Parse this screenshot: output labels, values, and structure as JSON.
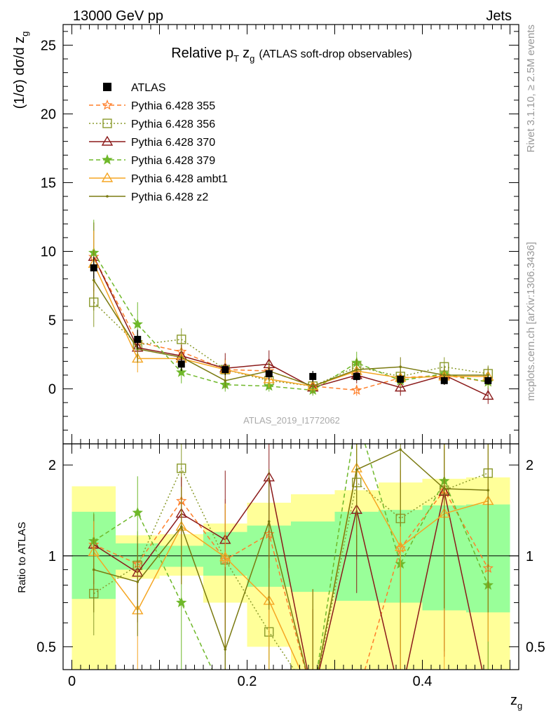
{
  "header": {
    "left": "13000 GeV pp",
    "right": "Jets"
  },
  "side_text": {
    "top": "Rivet 3.1.10, ≥ 2.5M events",
    "bottom": "mcplots.cern.ch [arXiv:1306.3436]"
  },
  "watermark": "ATLAS_2019_I1772062",
  "chart_data": [
    {
      "type": "line",
      "title": "Relative pT zg (ATLAS soft-drop observables)",
      "title_parts": {
        "a": "Relative p",
        "b": "T",
        "c": "z",
        "d": "g",
        "e": "(ATLAS soft-drop observables)"
      },
      "ylabel": "(1/σ) dσ/d z_g",
      "ylabel_parts": {
        "a": "(1/σ) dσ/d z",
        "b": "g"
      },
      "xlabel": "z_g",
      "xlim": [
        -0.01,
        0.51
      ],
      "ylim": [
        -4.0,
        26.5
      ],
      "yticks": [
        0,
        5,
        10,
        15,
        20,
        25
      ],
      "x": [
        0.025,
        0.075,
        0.125,
        0.175,
        0.225,
        0.275,
        0.325,
        0.375,
        0.425,
        0.475
      ],
      "reference": {
        "name": "ATLAS",
        "color": "#000000",
        "values": [
          8.8,
          3.6,
          1.8,
          1.4,
          1.1,
          0.9,
          0.9,
          0.7,
          0.6,
          0.6
        ],
        "errors": [
          0.8,
          0.7,
          0.5,
          0.4,
          0.4,
          0.4,
          0.3,
          0.3,
          0.3,
          0.3
        ]
      },
      "legend_position": "top-left",
      "series": [
        {
          "name": "Pythia 6.428 355",
          "color": "#ff7f2a",
          "dash": "6,4",
          "marker": "star-open",
          "values": [
            9.6,
            3.4,
            2.7,
            1.4,
            1.3,
            0.2,
            -0.1,
            0.8,
            1.0,
            0.5
          ],
          "errors": [
            2.5,
            0.8,
            0.7,
            0.8,
            0.8,
            0.4,
            0.4,
            0.6,
            0.5,
            0.5
          ]
        },
        {
          "name": "Pythia 6.428 356",
          "color": "#8a9a2c",
          "dash": "2,3",
          "marker": "square-open",
          "values": [
            6.3,
            3.2,
            3.6,
            1.4,
            0.6,
            0.2,
            1.6,
            0.9,
            1.6,
            1.1
          ],
          "errors": [
            1.8,
            1.0,
            0.8,
            0.7,
            0.6,
            0.5,
            0.7,
            0.6,
            0.7,
            0.6
          ]
        },
        {
          "name": "Pythia 6.428 370",
          "color": "#8b1a1a",
          "dash": "",
          "marker": "triangle-open",
          "values": [
            9.6,
            3.0,
            2.4,
            1.5,
            1.8,
            0.1,
            1.0,
            0.1,
            1.0,
            -0.5
          ],
          "errors": [
            2.5,
            1.0,
            0.8,
            1.1,
            1.0,
            0.5,
            0.6,
            0.6,
            0.7,
            0.6
          ]
        },
        {
          "name": "Pythia 6.428 379",
          "color": "#6fb82a",
          "dash": "6,4",
          "marker": "star-filled",
          "values": [
            9.9,
            4.7,
            1.2,
            0.3,
            0.2,
            -0.1,
            1.9,
            0.6,
            1.1,
            0.5
          ],
          "errors": [
            2.4,
            1.6,
            0.8,
            0.5,
            0.4,
            0.4,
            0.8,
            0.5,
            0.6,
            0.5
          ]
        },
        {
          "name": "Pythia 6.428 ambt1",
          "color": "#f5a623",
          "dash": "",
          "marker": "triangle-open",
          "values": [
            9.1,
            2.2,
            2.2,
            1.4,
            0.7,
            0.2,
            1.3,
            0.8,
            0.9,
            0.9
          ],
          "errors": [
            2.4,
            1.0,
            0.8,
            0.7,
            0.6,
            0.5,
            0.7,
            0.6,
            0.6,
            0.6
          ]
        },
        {
          "name": "Pythia 6.428 z2",
          "color": "#7a7a10",
          "dash": "",
          "marker": "dot",
          "values": [
            7.9,
            2.9,
            2.3,
            0.6,
            1.3,
            0.2,
            1.4,
            1.6,
            1.0,
            1.0
          ],
          "errors": [
            2.2,
            1.0,
            0.8,
            0.6,
            0.7,
            0.5,
            0.8,
            0.7,
            0.6,
            0.6
          ]
        }
      ]
    },
    {
      "type": "line",
      "title": "",
      "ylabel": "Ratio to ATLAS",
      "xlabel": "z_g",
      "xlim": [
        -0.01,
        0.51
      ],
      "ylim": [
        0.42,
        2.35
      ],
      "yscale": "log",
      "yticks": [
        0.5,
        1,
        2
      ],
      "xticks": [
        0,
        0.2,
        0.4
      ],
      "band_edges": [
        0.0,
        0.05,
        0.1,
        0.15,
        0.2,
        0.25,
        0.3,
        0.35,
        0.4,
        0.45,
        0.5
      ],
      "band_inner_low": [
        0.72,
        0.9,
        0.92,
        0.86,
        0.79,
        0.76,
        0.71,
        0.7,
        0.66,
        0.65
      ],
      "band_inner_high": [
        1.4,
        1.1,
        1.08,
        1.2,
        1.26,
        1.3,
        1.4,
        1.42,
        1.47,
        1.48
      ],
      "band_outer_low": [
        0.35,
        0.84,
        0.86,
        0.7,
        0.5,
        0.38,
        0.35,
        0.3,
        0.28,
        0.27
      ],
      "band_outer_high": [
        1.7,
        1.17,
        1.18,
        1.28,
        1.5,
        1.6,
        1.65,
        1.75,
        1.8,
        1.82
      ],
      "ratios": [
        {
          "name": "Pythia 6.428 355",
          "values": [
            1.09,
            0.94,
            1.52,
            0.97,
            1.18,
            0.22,
            -0.11,
            1.06,
            1.65,
            0.91
          ]
        },
        {
          "name": "Pythia 6.428 356",
          "values": [
            0.75,
            0.93,
            1.95,
            0.97,
            0.56,
            0.22,
            1.75,
            1.33,
            1.65,
            1.88
          ]
        },
        {
          "name": "Pythia 6.428 370",
          "values": [
            1.09,
            0.88,
            1.38,
            1.13,
            1.82,
            0.11,
            1.42,
            0.12,
            1.63,
            -0.4
          ]
        },
        {
          "name": "Pythia 6.428 379",
          "values": [
            1.12,
            1.39,
            0.7,
            0.22,
            0.2,
            -0.11,
            2.4,
            0.94,
            1.77,
            0.8
          ]
        },
        {
          "name": "Pythia 6.428 ambt1",
          "values": [
            1.03,
            0.66,
            1.25,
            0.99,
            0.71,
            0.22,
            1.95,
            1.07,
            1.38,
            1.52
          ]
        },
        {
          "name": "Pythia 6.428 z2",
          "values": [
            0.9,
            0.82,
            1.25,
            0.49,
            1.3,
            0.22,
            1.93,
            2.25,
            1.67,
            1.65
          ]
        }
      ]
    }
  ]
}
